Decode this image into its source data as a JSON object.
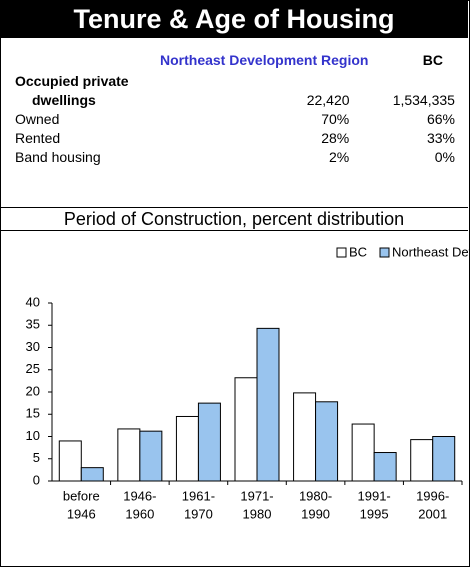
{
  "header": {
    "title": "Tenure & Age of Housing"
  },
  "table": {
    "columns": [
      "Northeast Development Region",
      "BC"
    ],
    "rows": [
      [
        "Occupied private dwellings",
        "22,420",
        "1,534,335"
      ],
      [
        "Owned",
        "70%",
        "66%"
      ],
      [
        "Rented",
        "28%",
        "33%"
      ],
      [
        "Band housing",
        "2%",
        "0%"
      ]
    ]
  },
  "chart_data": {
    "type": "bar",
    "title": "Period of Construction, percent distribution",
    "categories": [
      [
        "before",
        "1946"
      ],
      [
        "1946-",
        "1960"
      ],
      [
        "1961-",
        "1970"
      ],
      [
        "1971-",
        "1980"
      ],
      [
        "1980-",
        "1990"
      ],
      [
        "1991-",
        "1995"
      ],
      [
        "1996-",
        "2001"
      ]
    ],
    "series": [
      {
        "name": "BC",
        "color": "#ffffff",
        "values": [
          9,
          11.7,
          14.5,
          23.2,
          19.8,
          12.8,
          9.3
        ]
      },
      {
        "name": "Northeast Development Region",
        "color": "#99c4ee",
        "values": [
          3,
          11.2,
          17.5,
          34.3,
          17.8,
          6.4,
          10
        ]
      }
    ],
    "ylim": [
      0,
      40
    ],
    "yticks": [
      0,
      5,
      10,
      15,
      20,
      25,
      30,
      35,
      40
    ]
  }
}
